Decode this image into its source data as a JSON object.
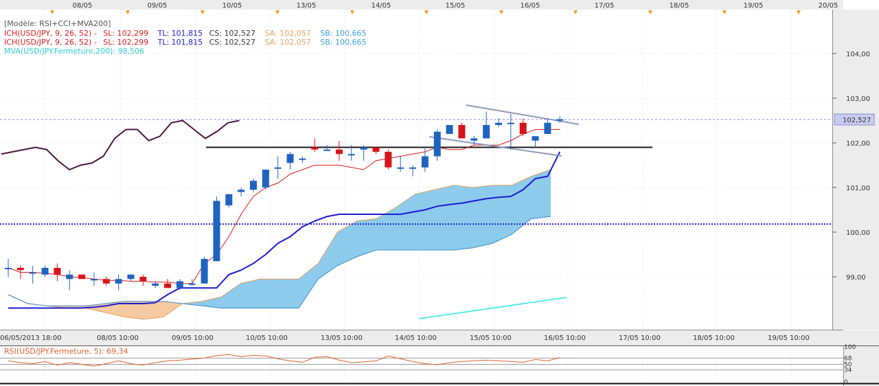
{
  "header": {
    "dates": [
      "08/05",
      "09/05",
      "10/05",
      "13/05",
      "14/05",
      "15/05",
      "16/05",
      "17/05",
      "18/05",
      "19/05",
      "20/05"
    ]
  },
  "legend": {
    "model": "[Modèle: RSI+CCI+MVA200]",
    "ich1": {
      "name": "ICH(USD/JPY, 9, 26, 52) -",
      "sl": "SL: 102,299",
      "tl": "TL: 101,815",
      "cs": "CS: 102,527",
      "sa": "SA: 102,057",
      "sb": "SB: 100,665"
    },
    "ich2": {
      "name": "ICH(USD/JPY, 9, 26, 52) -",
      "sl": "SL: 102,299",
      "tl": "TL: 101,815",
      "cs": "CS: 102,527",
      "sa": "SA: 102,057",
      "sb": "SB: 100,665"
    },
    "mva": "MVA(USD/JPY.Fermeture,200): 98,506",
    "rsi": "RSI(USD/JPY.Fermeture, 5): 69,34"
  },
  "colors": {
    "up": "#1f63c0",
    "down": "#d8141b",
    "tenkan": "#e01a1a",
    "kijun": "#1a1ad2",
    "chikou": "#4a1544",
    "mva": "#2ee8e8",
    "cloud_bull": "#8ccbec",
    "cloud_bear": "#f6c9a0",
    "senkou_a": "#e8a060",
    "rsi": "#e0602a",
    "hline": "#1a1a1a",
    "dotline": "#1a1acc",
    "trend": "#8c9ab8"
  },
  "price_axis": {
    "labels": [
      "104,00",
      "103,00",
      "102,00",
      "101,00",
      "100,00",
      "99,00"
    ],
    "current": "102,527"
  },
  "time_axis": {
    "labels": [
      "06/05/2013 18:00",
      "08/05 10:00",
      "09/05 10:00",
      "10/05 10:00",
      "13/05 10:00",
      "14/05 10:00",
      "15/05 10:00",
      "16/05 10:00",
      "17/05 10:00",
      "18/05 10:00",
      "19/05 10:00"
    ]
  },
  "rsi_axis": {
    "labels": [
      "100",
      "68",
      "50",
      "34",
      "0"
    ]
  },
  "chart_data": {
    "type": "candlestick",
    "title": "",
    "ylim": [
      98.0,
      105.0
    ],
    "y_ticks": [
      99,
      100,
      101,
      102,
      103,
      104
    ],
    "candles": [
      {
        "o": 99.2,
        "h": 99.4,
        "l": 99.0,
        "c": 99.2
      },
      {
        "o": 99.2,
        "h": 99.25,
        "l": 98.95,
        "c": 99.15
      },
      {
        "o": 99.1,
        "h": 99.25,
        "l": 98.85,
        "c": 99.1
      },
      {
        "o": 99.05,
        "h": 99.25,
        "l": 99.0,
        "c": 99.2
      },
      {
        "o": 99.2,
        "h": 99.3,
        "l": 98.9,
        "c": 99.05
      },
      {
        "o": 98.95,
        "h": 99.15,
        "l": 98.7,
        "c": 99.05
      },
      {
        "o": 99.05,
        "h": 99.05,
        "l": 98.95,
        "c": 98.95
      },
      {
        "o": 98.95,
        "h": 99.1,
        "l": 98.8,
        "c": 98.95
      },
      {
        "o": 98.95,
        "h": 99.0,
        "l": 98.8,
        "c": 98.85
      },
      {
        "o": 98.85,
        "h": 99.05,
        "l": 98.7,
        "c": 98.95
      },
      {
        "o": 98.95,
        "h": 99.05,
        "l": 98.9,
        "c": 99.05
      },
      {
        "o": 99.0,
        "h": 99.05,
        "l": 98.8,
        "c": 98.9
      },
      {
        "o": 98.8,
        "h": 98.9,
        "l": 98.75,
        "c": 98.85
      },
      {
        "o": 98.85,
        "h": 98.95,
        "l": 98.75,
        "c": 98.75
      },
      {
        "o": 98.75,
        "h": 98.95,
        "l": 98.7,
        "c": 98.9
      },
      {
        "o": 98.85,
        "h": 98.95,
        "l": 98.8,
        "c": 98.85
      },
      {
        "o": 98.85,
        "h": 99.45,
        "l": 98.85,
        "c": 99.4
      },
      {
        "o": 99.35,
        "h": 100.8,
        "l": 99.35,
        "c": 100.7
      },
      {
        "o": 100.6,
        "h": 100.85,
        "l": 100.55,
        "c": 100.85
      },
      {
        "o": 100.9,
        "h": 101.0,
        "l": 100.8,
        "c": 100.95
      },
      {
        "o": 100.95,
        "h": 101.2,
        "l": 100.9,
        "c": 101.15
      },
      {
        "o": 101.0,
        "h": 101.4,
        "l": 100.95,
        "c": 101.4
      },
      {
        "o": 101.45,
        "h": 101.7,
        "l": 101.2,
        "c": 101.45
      },
      {
        "o": 101.55,
        "h": 101.8,
        "l": 101.4,
        "c": 101.75
      },
      {
        "o": 101.65,
        "h": 101.7,
        "l": 101.55,
        "c": 101.65
      },
      {
        "o": 101.9,
        "h": 102.1,
        "l": 101.8,
        "c": 101.85
      },
      {
        "o": 101.85,
        "h": 101.95,
        "l": 101.85,
        "c": 101.85
      },
      {
        "o": 101.85,
        "h": 102.05,
        "l": 101.6,
        "c": 101.75
      },
      {
        "o": 101.75,
        "h": 101.95,
        "l": 101.6,
        "c": 101.75
      },
      {
        "o": 101.85,
        "h": 101.95,
        "l": 101.6,
        "c": 101.9
      },
      {
        "o": 101.9,
        "h": 101.9,
        "l": 101.75,
        "c": 101.8
      },
      {
        "o": 101.8,
        "h": 101.85,
        "l": 101.4,
        "c": 101.45
      },
      {
        "o": 101.45,
        "h": 101.7,
        "l": 101.35,
        "c": 101.45
      },
      {
        "o": 101.45,
        "h": 101.5,
        "l": 101.25,
        "c": 101.45
      },
      {
        "o": 101.45,
        "h": 101.9,
        "l": 101.35,
        "c": 101.7
      },
      {
        "o": 101.7,
        "h": 102.3,
        "l": 101.6,
        "c": 102.25
      },
      {
        "o": 102.2,
        "h": 102.4,
        "l": 102.2,
        "c": 102.4
      },
      {
        "o": 102.4,
        "h": 102.45,
        "l": 102.1,
        "c": 102.1
      },
      {
        "o": 102.05,
        "h": 102.15,
        "l": 101.95,
        "c": 102.1
      },
      {
        "o": 102.1,
        "h": 102.7,
        "l": 102.1,
        "c": 102.4
      },
      {
        "o": 102.4,
        "h": 102.55,
        "l": 102.35,
        "c": 102.45
      },
      {
        "o": 102.45,
        "h": 102.65,
        "l": 101.85,
        "c": 102.45
      },
      {
        "o": 102.45,
        "h": 102.55,
        "l": 102.15,
        "c": 102.2
      },
      {
        "o": 102.05,
        "h": 102.15,
        "l": 101.9,
        "c": 102.15
      },
      {
        "o": 102.2,
        "h": 102.55,
        "l": 102.2,
        "c": 102.45
      },
      {
        "o": 102.5,
        "h": 102.6,
        "l": 102.45,
        "c": 102.53
      }
    ],
    "tenkan": [
      99.2,
      99.1,
      99.1,
      99.08,
      99.05,
      99.0,
      98.98,
      98.95,
      98.92,
      98.92,
      98.9,
      98.9,
      98.88,
      98.88,
      98.85,
      98.85,
      99.3,
      99.5,
      99.9,
      100.4,
      100.8,
      101.0,
      101.1,
      101.3,
      101.4,
      101.5,
      101.5,
      101.5,
      101.45,
      101.4,
      101.6,
      101.65,
      101.7,
      101.75,
      101.8,
      101.9,
      101.85,
      101.85,
      101.95,
      101.95,
      101.95,
      102.05,
      102.2,
      102.3,
      102.3,
      102.3
    ],
    "kijun": [
      98.3,
      98.3,
      98.3,
      98.3,
      98.3,
      98.3,
      98.3,
      98.32,
      98.35,
      98.4,
      98.4,
      98.4,
      98.42,
      98.6,
      98.75,
      98.75,
      98.75,
      98.75,
      99.05,
      99.15,
      99.3,
      99.5,
      99.75,
      99.9,
      100.12,
      100.25,
      100.35,
      100.4,
      100.4,
      100.4,
      100.4,
      100.4,
      100.4,
      100.45,
      100.5,
      100.58,
      100.62,
      100.65,
      100.7,
      100.75,
      100.78,
      100.8,
      100.95,
      101.2,
      101.25,
      101.8
    ],
    "chikou": [
      101.75,
      101.8,
      101.85,
      101.9,
      101.85,
      101.6,
      101.4,
      101.5,
      101.55,
      101.7,
      102.1,
      102.3,
      102.3,
      102.05,
      102.15,
      102.45,
      102.5,
      102.3,
      102.1,
      102.25,
      102.45,
      102.5
    ],
    "senkou_a": [
      98.6,
      98.4,
      98.35,
      98.3,
      98.3,
      98.2,
      98.1,
      98.05,
      98.1,
      98.4,
      98.45,
      98.55,
      98.85,
      98.95,
      98.95,
      98.95,
      99.3,
      100.0,
      100.25,
      100.3,
      100.55,
      100.85,
      100.95,
      101.05,
      101.0,
      101.05,
      101.05,
      101.25,
      101.4
    ],
    "senkou_b": [
      98.6,
      98.4,
      98.35,
      98.35,
      98.35,
      98.4,
      98.45,
      98.45,
      98.45,
      98.4,
      98.35,
      98.3,
      98.3,
      98.3,
      98.3,
      98.3,
      98.95,
      99.25,
      99.45,
      99.6,
      99.6,
      99.6,
      99.6,
      99.6,
      99.65,
      99.75,
      99.95,
      100.3,
      100.35
    ],
    "mva": [
      98.3,
      98.38,
      98.45,
      98.52
    ],
    "hline": 101.9,
    "dotline": 100.18,
    "rsi": [
      60,
      55,
      52,
      58,
      48,
      55,
      50,
      45,
      52,
      60,
      52,
      48,
      55,
      60,
      62,
      65,
      68,
      75,
      78,
      72,
      76,
      74,
      66,
      60,
      56,
      70,
      72,
      62,
      55,
      57,
      60,
      74,
      66,
      58,
      52,
      49,
      55,
      58,
      60,
      62,
      60,
      58,
      56,
      64,
      60,
      69.34
    ],
    "rsi_ylim": [
      0,
      100
    ]
  }
}
